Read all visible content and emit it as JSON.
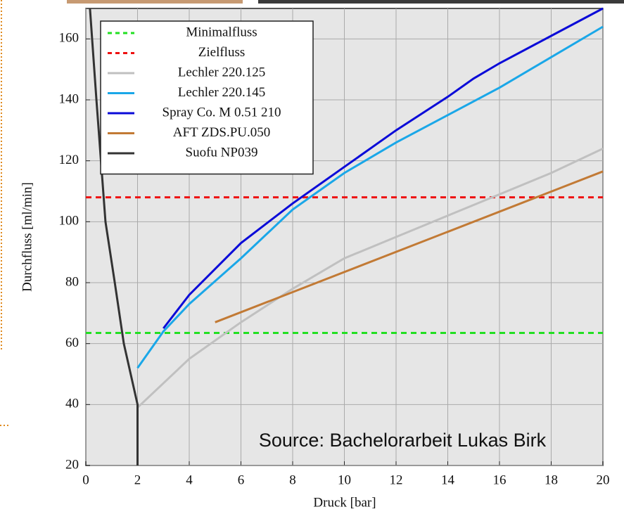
{
  "chart_data": {
    "type": "line",
    "x_label": "Druck [bar]",
    "y_label": "Durchfluss [ml/min]",
    "annotation": "Source: Bachelorarbeit Lukas Birk",
    "xlim": [
      0,
      20
    ],
    "xticks": [
      0,
      2,
      4,
      6,
      8,
      10,
      12,
      14,
      16,
      18,
      20
    ],
    "ylim": [
      20,
      170
    ],
    "yticks": [
      20,
      40,
      60,
      80,
      100,
      120,
      140,
      160
    ],
    "grid": true,
    "legend": "upper-left",
    "series": [
      {
        "name": "Minimalfluss",
        "color": "#22e022",
        "dashed": true,
        "x": [
          0,
          20
        ],
        "values": [
          63.5,
          63.5
        ]
      },
      {
        "name": "Zielfluss",
        "color": "#ee1111",
        "dashed": true,
        "x": [
          0,
          20
        ],
        "values": [
          108,
          108
        ]
      },
      {
        "name": "Lechler 220.125",
        "color": "#c0c0c0",
        "dashed": false,
        "x": [
          2,
          4,
          6,
          8,
          10,
          12,
          14,
          16,
          18,
          20
        ],
        "values": [
          39,
          55,
          67,
          78,
          88,
          95,
          102,
          109,
          116,
          124
        ]
      },
      {
        "name": "Lechler 220.145",
        "color": "#1aa7e8",
        "dashed": false,
        "x": [
          2,
          3,
          4,
          6,
          8,
          10,
          12,
          14,
          16,
          18,
          20
        ],
        "values": [
          52,
          64,
          73,
          88,
          104,
          116,
          126,
          135,
          144,
          154,
          164
        ]
      },
      {
        "name": "Spray Co. M 0.51 210",
        "color": "#0a0ad8",
        "dashed": false,
        "x": [
          3,
          4,
          6,
          8,
          10,
          12,
          14,
          15,
          16,
          18,
          20
        ],
        "values": [
          65,
          76,
          93,
          106,
          118,
          130,
          141,
          147,
          152,
          161,
          170
        ]
      },
      {
        "name": "AFT ZDS.PU.050",
        "color": "#c27a35",
        "dashed": false,
        "x": [
          5,
          20
        ],
        "values": [
          67,
          116.5
        ]
      },
      {
        "name": "Suofu NP039",
        "color": "#333333",
        "dashed": false,
        "x": [
          0.16,
          0.41,
          0.76,
          1.12,
          1.47,
          2,
          2
        ],
        "values": [
          170,
          140,
          100,
          80,
          60,
          40,
          20
        ]
      }
    ]
  }
}
